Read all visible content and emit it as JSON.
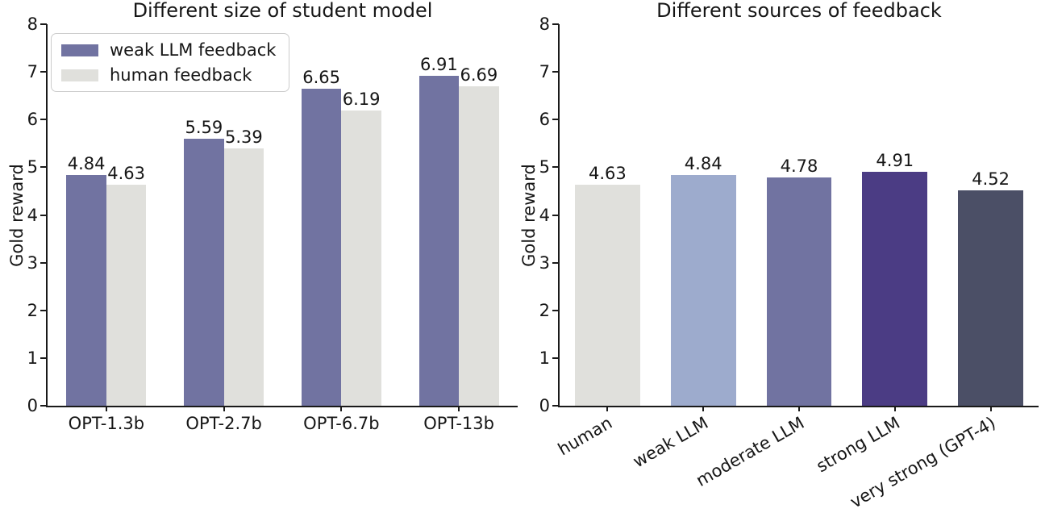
{
  "figure": {
    "background": "#ffffff",
    "text_color": "#161616",
    "axis_color": "#1a1a1a"
  },
  "chart_data": [
    {
      "type": "bar",
      "title": "Different size of student model",
      "ylabel": "Gold reward",
      "ylim": [
        0,
        8
      ],
      "yticks": [
        0,
        1,
        2,
        3,
        4,
        5,
        6,
        7,
        8
      ],
      "ytick_labels": [
        "0",
        "1",
        "2",
        "3",
        "4",
        "5",
        "6",
        "7",
        "8"
      ],
      "grid": "off",
      "categories": [
        "OPT-1.3b",
        "OPT-2.7b",
        "OPT-6.7b",
        "OPT-13b"
      ],
      "series": [
        {
          "name": "weak LLM feedback",
          "color": "#7173a1",
          "values": [
            4.84,
            5.59,
            6.65,
            6.91
          ],
          "labels": [
            "4.84",
            "5.59",
            "6.65",
            "6.91"
          ]
        },
        {
          "name": "human feedback",
          "color": "#e0e0dc",
          "values": [
            4.63,
            5.39,
            6.19,
            6.69
          ],
          "labels": [
            "4.63",
            "5.39",
            "6.19",
            "6.69"
          ]
        }
      ],
      "legend": {
        "position": "upper left"
      },
      "xtick_rotation": 0
    },
    {
      "type": "bar",
      "title": "Different sources of feedback",
      "ylabel": "Gold reward",
      "ylim": [
        0,
        8
      ],
      "yticks": [
        0,
        1,
        2,
        3,
        4,
        5,
        6,
        7,
        8
      ],
      "ytick_labels": [
        "0",
        "1",
        "2",
        "3",
        "4",
        "5",
        "6",
        "7",
        "8"
      ],
      "grid": "off",
      "categories": [
        "human",
        "weak LLM",
        "moderate LLM",
        "strong LLM",
        "very strong (GPT-4)"
      ],
      "values": [
        4.63,
        4.84,
        4.78,
        4.91,
        4.52
      ],
      "labels": [
        "4.63",
        "4.84",
        "4.78",
        "4.91",
        "4.52"
      ],
      "bar_colors": [
        "#e0e0dc",
        "#9dabcd",
        "#7173a1",
        "#4b3c84",
        "#4b4f66"
      ],
      "xtick_rotation": 30
    }
  ]
}
